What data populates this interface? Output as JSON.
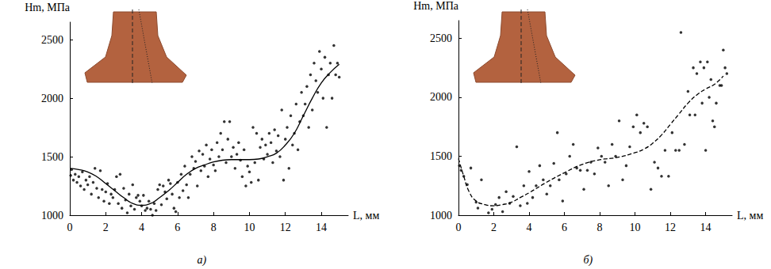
{
  "chart_data": [
    {
      "type": "scatter",
      "subtitle": "а)",
      "xlabel": "L, мм",
      "ylabel": "Hm, МПа",
      "xlim": [
        0,
        15.5
      ],
      "xticks": [
        0,
        2,
        4,
        6,
        8,
        10,
        12,
        14
      ],
      "ylim": [
        1000,
        2650
      ],
      "yticks": [
        1000,
        1500,
        2000,
        2500
      ],
      "grid": false,
      "series": [
        {
          "type": "scatter",
          "color": "#000000",
          "marker": "circle",
          "x": [
            0.05,
            0.1,
            0.2,
            0.3,
            0.4,
            0.5,
            0.6,
            0.7,
            0.8,
            0.9,
            1.0,
            1.1,
            1.2,
            1.3,
            1.4,
            1.5,
            1.6,
            1.7,
            1.8,
            1.9,
            2.0,
            2.1,
            2.2,
            2.3,
            2.4,
            2.5,
            2.6,
            2.7,
            2.8,
            2.9,
            3.0,
            3.1,
            3.2,
            3.3,
            3.4,
            3.5,
            3.6,
            3.7,
            3.8,
            3.9,
            4.0,
            4.1,
            4.2,
            4.3,
            4.4,
            4.5,
            4.6,
            4.7,
            4.8,
            4.9,
            5.0,
            5.1,
            5.2,
            5.3,
            5.4,
            5.5,
            5.6,
            5.7,
            5.8,
            5.9,
            6.0,
            6.1,
            6.2,
            6.3,
            6.4,
            6.5,
            6.6,
            6.7,
            6.8,
            6.9,
            7.0,
            7.1,
            7.2,
            7.3,
            7.4,
            7.5,
            7.6,
            7.7,
            7.8,
            7.9,
            8.0,
            8.1,
            8.2,
            8.3,
            8.4,
            8.5,
            8.6,
            8.7,
            8.8,
            8.9,
            9.0,
            9.1,
            9.2,
            9.3,
            9.4,
            9.5,
            9.6,
            9.7,
            9.8,
            9.9,
            10.0,
            10.1,
            10.2,
            10.3,
            10.4,
            10.5,
            10.6,
            10.7,
            10.8,
            10.9,
            11.0,
            11.1,
            11.2,
            11.3,
            11.4,
            11.5,
            11.6,
            11.7,
            11.8,
            11.9,
            12.0,
            12.1,
            12.2,
            12.3,
            12.4,
            12.5,
            12.6,
            12.7,
            12.8,
            12.9,
            13.0,
            13.1,
            13.2,
            13.3,
            13.4,
            13.5,
            13.6,
            13.7,
            13.8,
            13.9,
            14.0,
            14.1,
            14.2,
            14.3,
            14.4,
            14.5,
            14.6,
            14.7,
            14.8,
            14.9,
            15.0
          ],
          "values": [
            1340,
            1390,
            1300,
            1350,
            1280,
            1330,
            1250,
            1370,
            1220,
            1300,
            1260,
            1330,
            1180,
            1280,
            1400,
            1230,
            1150,
            1380,
            1220,
            1120,
            1200,
            1270,
            1100,
            1180,
            1150,
            1220,
            1330,
            1100,
            1350,
            1060,
            1230,
            1130,
            1020,
            1180,
            1080,
            1260,
            1050,
            1150,
            1170,
            1120,
            1080,
            1170,
            1040,
            1060,
            1120,
            1050,
            1000,
            1100,
            1040,
            1220,
            1260,
            1090,
            1250,
            1200,
            1140,
            1300,
            1270,
            1180,
            1060,
            1030,
            1280,
            1150,
            1350,
            1210,
            1420,
            1260,
            1150,
            1350,
            1500,
            1400,
            1460,
            1250,
            1550,
            1380,
            1520,
            1420,
            1600,
            1330,
            1480,
            1560,
            1430,
            1380,
            1620,
            1500,
            1700,
            1560,
            1800,
            1450,
            1650,
            1800,
            1500,
            1580,
            1400,
            1520,
            1620,
            1470,
            1330,
            1560,
            1250,
            1420,
            1370,
            1280,
            1750,
            1450,
            1700,
            1300,
            1580,
            1650,
            1480,
            1600,
            1520,
            1700,
            1620,
            1450,
            1730,
            1550,
            1680,
            1500,
            1900,
            1300,
            1650,
            1750,
            1400,
            1850,
            1600,
            1700,
            1950,
            1560,
            1800,
            2050,
            1850,
            1950,
            2100,
            1750,
            2200,
            1900,
            2300,
            2150,
            2050,
            2400,
            2250,
            2000,
            2350,
            1750,
            2200,
            2300,
            2000,
            2450,
            2200,
            2300,
            2180
          ]
        },
        {
          "type": "line",
          "color": "#000000",
          "line_style": "solid",
          "x": [
            0,
            0.5,
            1,
            1.5,
            2,
            2.5,
            3,
            3.5,
            4,
            4.5,
            5,
            5.5,
            6,
            6.5,
            7,
            7.5,
            8,
            8.5,
            9,
            9.5,
            10,
            10.5,
            11,
            11.5,
            12,
            12.5,
            13,
            13.5,
            14,
            14.5,
            15
          ],
          "values": [
            1400,
            1390,
            1370,
            1330,
            1270,
            1210,
            1150,
            1100,
            1085,
            1100,
            1150,
            1210,
            1280,
            1350,
            1400,
            1430,
            1455,
            1470,
            1475,
            1475,
            1475,
            1480,
            1500,
            1530,
            1600,
            1700,
            1850,
            2000,
            2130,
            2220,
            2290
          ]
        }
      ]
    },
    {
      "type": "scatter",
      "subtitle": "б)",
      "xlabel": "L, мм",
      "ylabel": "Hm, МПа",
      "xlim": [
        0,
        15.5
      ],
      "xticks": [
        0,
        2,
        4,
        6,
        8,
        10,
        12,
        14
      ],
      "ylim": [
        1000,
        2650
      ],
      "yticks": [
        1000,
        1500,
        2000,
        2500
      ],
      "grid": false,
      "series": [
        {
          "type": "scatter",
          "color": "#000000",
          "marker": "circle",
          "x": [
            0.05,
            0.15,
            0.3,
            0.5,
            0.7,
            1.0,
            1.1,
            1.3,
            1.7,
            1.9,
            2.1,
            2.3,
            2.5,
            2.7,
            2.9,
            3.1,
            3.3,
            3.5,
            3.7,
            3.9,
            4.0,
            4.2,
            4.4,
            4.6,
            4.8,
            5.0,
            5.2,
            5.4,
            5.6,
            5.7,
            5.9,
            6.1,
            6.3,
            6.5,
            6.7,
            6.9,
            7.1,
            7.3,
            7.5,
            7.7,
            7.9,
            8.1,
            8.3,
            8.5,
            8.7,
            8.9,
            9.1,
            9.3,
            9.5,
            9.7,
            9.9,
            10.1,
            10.3,
            10.5,
            10.7,
            10.9,
            11.1,
            11.3,
            11.5,
            11.7,
            11.9,
            12.1,
            12.3,
            12.5,
            12.6,
            12.8,
            13.0,
            13.1,
            13.3,
            13.4,
            13.5,
            13.7,
            13.8,
            13.9,
            14.0,
            14.1,
            14.2,
            14.3,
            14.4,
            14.5,
            14.6,
            14.8,
            14.9,
            15.0,
            15.1,
            15.2
          ],
          "values": [
            1420,
            1380,
            1330,
            1260,
            1400,
            1110,
            1060,
            1300,
            1020,
            1050,
            1090,
            1150,
            1030,
            1200,
            1100,
            1160,
            1580,
            1080,
            1250,
            1100,
            1370,
            1150,
            1250,
            1420,
            1300,
            1180,
            1250,
            1440,
            1700,
            1300,
            1120,
            1350,
            1500,
            1600,
            1400,
            1380,
            1220,
            1380,
            1450,
            1350,
            1570,
            1500,
            1450,
            1250,
            1600,
            1500,
            1800,
            1300,
            1420,
            1580,
            1750,
            1850,
            1700,
            1780,
            1750,
            1220,
            1450,
            1400,
            1330,
            1550,
            1330,
            1700,
            1550,
            1550,
            2550,
            1600,
            2050,
            1850,
            2250,
            1850,
            2200,
            2300,
            1950,
            2250,
            1550,
            2300,
            2000,
            2150,
            1800,
            1750,
            1950,
            2100,
            2100,
            2400,
            2250,
            2200
          ]
        },
        {
          "type": "line",
          "color": "#000000",
          "line_style": "dashed",
          "x": [
            0,
            0.3,
            0.6,
            1,
            1.5,
            2,
            2.5,
            3,
            3.5,
            4,
            5,
            6,
            7,
            8,
            9,
            10,
            10.5,
            11,
            11.5,
            12,
            12.5,
            13,
            13.5,
            14,
            14.5,
            15
          ],
          "values": [
            1480,
            1330,
            1200,
            1120,
            1090,
            1080,
            1090,
            1110,
            1150,
            1190,
            1280,
            1360,
            1430,
            1470,
            1490,
            1530,
            1560,
            1610,
            1680,
            1770,
            1860,
            1950,
            2020,
            2070,
            2110,
            2180
          ]
        }
      ]
    }
  ]
}
